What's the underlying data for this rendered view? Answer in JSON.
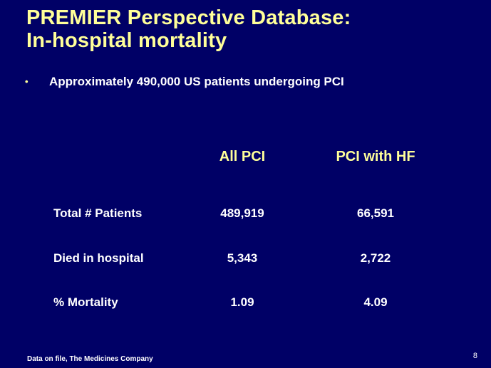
{
  "title": {
    "line1": "PREMIER Perspective Database:",
    "line2": "In-hospital mortality"
  },
  "bullet": {
    "marker": "•",
    "text": "Approximately 490,000 US patients undergoing PCI"
  },
  "table": {
    "columns": [
      "All PCI",
      "PCI with HF"
    ],
    "rows": [
      {
        "label": "Total # Patients",
        "values": [
          "489,919",
          "66,591"
        ]
      },
      {
        "label": "Died in hospital",
        "values": [
          "5,343",
          "2,722"
        ]
      },
      {
        "label": "% Mortality",
        "values": [
          "1.09",
          "4.09"
        ]
      }
    ]
  },
  "footer": {
    "source": "Data on file, The  Medicines Company"
  },
  "page_number": "8"
}
